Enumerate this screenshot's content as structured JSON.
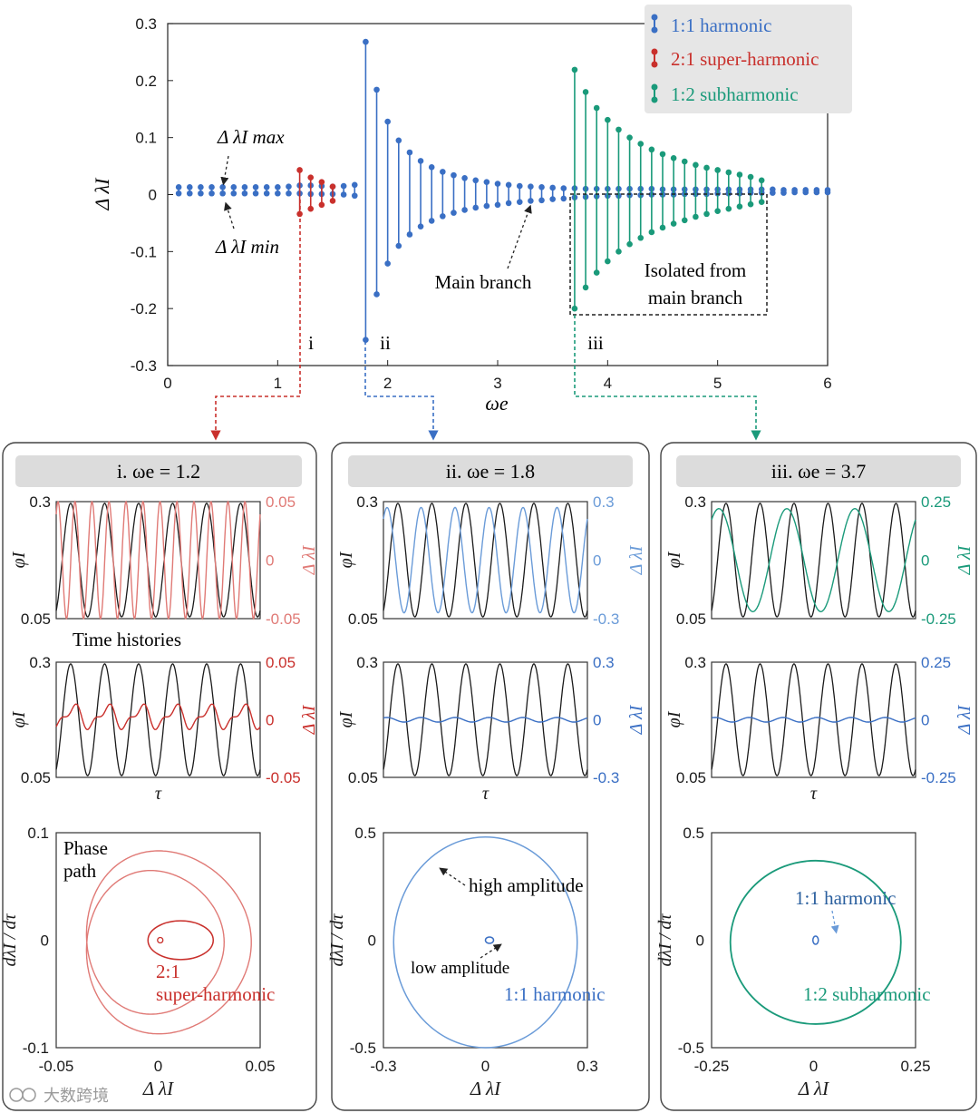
{
  "colors": {
    "harmonic": "#3a6fc4",
    "superharmonic": "#c9302c",
    "subharmonic": "#1a9a7a",
    "black": "#1a1a1a",
    "harmonic_light": "#6a9bd8",
    "super_light": "#e07a76",
    "legend_bg": "#e6e6e6",
    "panel_title_bg": "#dcdcdc"
  },
  "chart_data": [
    {
      "id": "bifurcation",
      "type": "scatter",
      "xlabel": "ωe",
      "ylabel": "Δ λI",
      "xlim": [
        0,
        6
      ],
      "ylim": [
        -0.3,
        0.3
      ],
      "xticks": [
        "0",
        "1",
        "2",
        "3",
        "4",
        "5",
        "6"
      ],
      "yticks": [
        "0.3",
        "0.2",
        "0.1",
        "0",
        "-0.1",
        "-0.2",
        "-0.3"
      ],
      "legend": {
        "location": "top-right",
        "entries": [
          "1:1 harmonic",
          "2:1 super-harmonic",
          "1:2 subharmonic"
        ]
      },
      "series": [
        {
          "name": "1:1 harmonic",
          "color_key": "harmonic",
          "x": [
            0.1,
            0.2,
            0.3,
            0.4,
            0.5,
            0.6,
            0.7,
            0.8,
            0.9,
            1.0,
            1.1,
            1.2,
            1.3,
            1.4,
            1.5,
            1.6,
            1.7,
            1.8,
            1.9,
            2.0,
            2.1,
            2.2,
            2.3,
            2.4,
            2.5,
            2.6,
            2.7,
            2.8,
            2.9,
            3.0,
            3.1,
            3.2,
            3.3,
            3.4,
            3.5,
            3.6,
            3.7,
            3.8,
            3.9,
            4.0,
            4.1,
            4.2,
            4.3,
            4.4,
            4.5,
            4.6,
            4.7,
            4.8,
            4.9,
            5.0,
            5.1,
            5.2,
            5.3,
            5.4,
            5.5,
            5.6,
            5.7,
            5.8,
            5.9,
            6.0
          ],
          "ymax": [
            0.013,
            0.013,
            0.013,
            0.013,
            0.013,
            0.013,
            0.013,
            0.013,
            0.013,
            0.013,
            0.014,
            0.016,
            0.016,
            0.015,
            0.014,
            0.015,
            0.017,
            0.268,
            0.184,
            0.128,
            0.095,
            0.074,
            0.059,
            0.048,
            0.04,
            0.034,
            0.029,
            0.025,
            0.022,
            0.019,
            0.017,
            0.015,
            0.014,
            0.013,
            0.012,
            0.011,
            0.011,
            0.01,
            0.01,
            0.01,
            0.01,
            0.01,
            0.01,
            0.01,
            0.009,
            0.009,
            0.009,
            0.009,
            0.009,
            0.009,
            0.009,
            0.009,
            0.009,
            0.009,
            0.009,
            0.008,
            0.008,
            0.008,
            0.008,
            0.008
          ],
          "ymin": [
            0.002,
            0.002,
            0.002,
            0.002,
            0.002,
            0.002,
            0.002,
            0.002,
            0.002,
            0.002,
            0.002,
            0.002,
            0.001,
            0.001,
            0.001,
            0.0,
            -0.002,
            -0.255,
            -0.175,
            -0.121,
            -0.09,
            -0.07,
            -0.056,
            -0.046,
            -0.038,
            -0.032,
            -0.027,
            -0.023,
            -0.02,
            -0.018,
            -0.015,
            -0.013,
            -0.011,
            -0.01,
            -0.008,
            -0.007,
            -0.005,
            -0.004,
            -0.003,
            -0.002,
            -0.002,
            -0.001,
            -0.001,
            0.0,
            0.0,
            0.0,
            0.001,
            0.001,
            0.001,
            0.002,
            0.002,
            0.002,
            0.003,
            0.003,
            0.003,
            0.003,
            0.004,
            0.004,
            0.004,
            0.004
          ]
        },
        {
          "name": "2:1 super-harmonic",
          "color_key": "superharmonic",
          "x": [
            1.2,
            1.3,
            1.4,
            1.5
          ],
          "ymax": [
            0.043,
            0.03,
            0.022,
            0.014
          ],
          "ymin": [
            -0.034,
            -0.025,
            -0.018,
            -0.011
          ]
        },
        {
          "name": "1:2 subharmonic",
          "color_key": "subharmonic",
          "x": [
            3.7,
            3.8,
            3.9,
            4.0,
            4.1,
            4.2,
            4.3,
            4.4,
            4.5,
            4.6,
            4.7,
            4.8,
            4.9,
            5.0,
            5.1,
            5.2,
            5.3,
            5.4
          ],
          "ymax": [
            0.219,
            0.18,
            0.152,
            0.131,
            0.114,
            0.1,
            0.089,
            0.079,
            0.071,
            0.064,
            0.058,
            0.052,
            0.047,
            0.043,
            0.039,
            0.035,
            0.031,
            0.025
          ],
          "ymin": [
            -0.2,
            -0.163,
            -0.137,
            -0.117,
            -0.1,
            -0.087,
            -0.076,
            -0.066,
            -0.058,
            -0.051,
            -0.045,
            -0.039,
            -0.034,
            -0.029,
            -0.025,
            -0.021,
            -0.017,
            -0.013
          ]
        }
      ],
      "annotations": {
        "max_label": "Δ λI max",
        "min_label": "Δ λI min",
        "main_branch": "Main branch",
        "isolated_line1": "Isolated from",
        "isolated_line2": "main branch",
        "marker_i": "i",
        "marker_ii": "ii",
        "marker_iii": "iii"
      }
    },
    {
      "id": "panel-i",
      "type": "line",
      "title": "i.  ωe = 1.2",
      "omega_e": 1.2,
      "time_history_top": {
        "left_ylim": [
          0.05,
          0.3
        ],
        "right_ylim": [
          -0.05,
          0.05
        ],
        "left_ticks": [
          "0.3",
          "0.05"
        ],
        "right_ticks": [
          "0.05",
          "0",
          "-0.05"
        ],
        "phi_cycles": 6,
        "lambda_amplitude": 0.05,
        "lambda_frequency_ratio": 2,
        "color_key": "super_light"
      },
      "time_history_bottom": {
        "left_ylim": [
          0.05,
          0.3
        ],
        "right_ylim": [
          -0.05,
          0.05
        ],
        "left_ticks": [
          "0.3",
          "0.05"
        ],
        "right_ticks": [
          "0.05",
          "0",
          "-0.05"
        ],
        "phi_cycles": 6,
        "lambda_amplitude": 0.017,
        "lambda_frequency_ratio": 2,
        "color_key": "superharmonic"
      },
      "phase": {
        "xlim": [
          -0.05,
          0.05
        ],
        "ylim": [
          -0.1,
          0.1
        ],
        "xticks": [
          "-0.05",
          "0",
          "0.05"
        ],
        "yticks": [
          "0.1",
          "0",
          "-0.1"
        ],
        "outer_loop_rx": 0.037,
        "outer_loop_ry": 0.082,
        "inner_loop_rx": 0.016,
        "inner_loop_ry": 0.018
      },
      "labels": {
        "section": "Time histories",
        "phase_label_1": "Phase",
        "phase_label_2": "path",
        "orbit_label_1": "2:1",
        "orbit_label_2": "super-harmonic",
        "tau": "τ",
        "phi": "φI",
        "dlambda": "Δ λI",
        "phase_ylabel": "dλI / dτ"
      }
    },
    {
      "id": "panel-ii",
      "type": "line",
      "title": "ii.  ωe = 1.8",
      "omega_e": 1.8,
      "time_history_top": {
        "left_ylim": [
          0.05,
          0.3
        ],
        "right_ylim": [
          -0.3,
          0.3
        ],
        "left_ticks": [
          "0.3",
          "0.05"
        ],
        "right_ticks": [
          "0.3",
          "0",
          "-0.3"
        ],
        "phi_cycles": 6,
        "lambda_amplitude": 0.27,
        "lambda_frequency_ratio": 1,
        "color_key": "harmonic_light"
      },
      "time_history_bottom": {
        "left_ylim": [
          0.05,
          0.3
        ],
        "right_ylim": [
          -0.3,
          0.3
        ],
        "left_ticks": [
          "0.3",
          "0.05"
        ],
        "right_ticks": [
          "0.3",
          "0",
          "-0.3"
        ],
        "phi_cycles": 6,
        "lambda_amplitude": 0.012,
        "lambda_frequency_ratio": 1,
        "color_key": "harmonic"
      },
      "phase": {
        "xlim": [
          -0.3,
          0.3
        ],
        "ylim": [
          -0.5,
          0.5
        ],
        "xticks": [
          "-0.3",
          "0",
          "0.3"
        ],
        "yticks": [
          "0.5",
          "0",
          "-0.5"
        ],
        "outer_rx": 0.27,
        "outer_ry": 0.5,
        "inner_r": 0.012
      },
      "labels": {
        "high": "high amplitude",
        "low": "low amplitude",
        "orbit": "1:1 harmonic",
        "tau": "τ",
        "phi": "φI",
        "dlambda": "Δ λI",
        "phase_ylabel": "dλI / dτ"
      }
    },
    {
      "id": "panel-iii",
      "type": "line",
      "title": "iii.  ωe = 3.7",
      "omega_e": 3.7,
      "time_history_top": {
        "left_ylim": [
          0.05,
          0.3
        ],
        "right_ylim": [
          -0.25,
          0.25
        ],
        "left_ticks": [
          "0.3",
          "0.05"
        ],
        "right_ticks": [
          "0.25",
          "0",
          "-0.25"
        ],
        "phi_cycles": 6,
        "lambda_amplitude": 0.22,
        "lambda_frequency_ratio": 0.5,
        "color_key": "subharmonic"
      },
      "time_history_bottom": {
        "left_ylim": [
          0.05,
          0.3
        ],
        "right_ylim": [
          -0.25,
          0.25
        ],
        "left_ticks": [
          "0.3",
          "0.05"
        ],
        "right_ticks": [
          "0.25",
          "0",
          "-0.25"
        ],
        "phi_cycles": 6,
        "lambda_amplitude": 0.01,
        "lambda_frequency_ratio": 1,
        "color_key": "harmonic"
      },
      "phase": {
        "xlim": [
          -0.25,
          0.25
        ],
        "ylim": [
          -0.5,
          0.5
        ],
        "xticks": [
          "-0.25",
          "0",
          "0.25"
        ],
        "yticks": [
          "0.5",
          "0",
          "-0.5"
        ],
        "outer_rx": 0.22,
        "outer_ry": 0.38,
        "inner_r": 0.01
      },
      "labels": {
        "inner": "1:1 harmonic",
        "orbit": "1:2 subharmonic",
        "tau": "τ",
        "phi": "φI",
        "dlambda": "Δ λI",
        "phase_ylabel": "dλI / dτ"
      }
    }
  ],
  "watermark": "大数跨境"
}
